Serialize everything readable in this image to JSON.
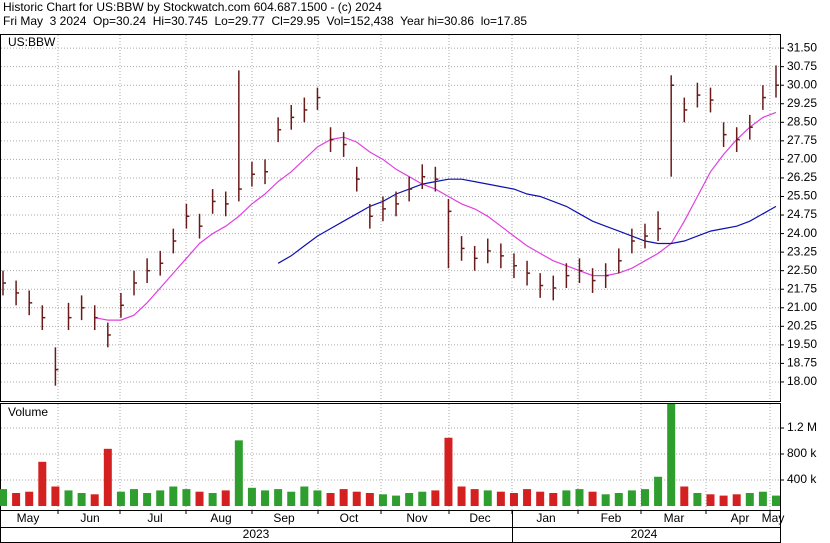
{
  "chart_data": {
    "type": "ohlc",
    "title": "Historic Chart for US:BBW by Stockwatch.com 604.687.1500 - (c) 2024",
    "subtitle": "Fri May  3 2024  Op=30.24  Hi=30.745  Lo=29.77  Cl=29.95  Vol=152,438  Year hi=30.86  lo=17.85",
    "symbol": "US:BBW",
    "volume_label": "Volume",
    "months": [
      "May",
      "Jun",
      "Jul",
      "Aug",
      "Sep",
      "Oct",
      "Nov",
      "Dec",
      "Jan",
      "Feb",
      "Mar",
      "Apr",
      "May"
    ],
    "years": [
      "2023",
      "2024"
    ],
    "bar_color": "#6b1a1a",
    "close": [
      22.0,
      21.6,
      21.2,
      20.6,
      18.5,
      20.6,
      21.0,
      20.6,
      19.9,
      21.1,
      22.0,
      22.5,
      22.8,
      23.7,
      24.7,
      24.3,
      25.3,
      25.2,
      25.8,
      26.4,
      26.5,
      28.2,
      28.7,
      29.0,
      29.5,
      27.8,
      27.6,
      26.2,
      24.7,
      25.0,
      25.2,
      25.8,
      26.3,
      26.2,
      24.9,
      23.4,
      23.0,
      23.3,
      23.1,
      22.7,
      22.4,
      21.9,
      21.8,
      22.3,
      22.5,
      22.1,
      22.3,
      22.9,
      23.7,
      23.9,
      24.2,
      30.0,
      29.0,
      29.6,
      29.4,
      28.0,
      27.8,
      28.3,
      29.5,
      30.0
    ],
    "high": [
      22.5,
      22.1,
      21.7,
      21.1,
      19.4,
      21.2,
      21.5,
      21.1,
      20.4,
      21.6,
      22.5,
      23.0,
      23.3,
      24.2,
      25.2,
      24.8,
      25.8,
      25.7,
      30.6,
      26.9,
      27.0,
      28.7,
      29.2,
      29.5,
      29.9,
      28.3,
      28.1,
      26.7,
      25.2,
      25.5,
      25.7,
      26.3,
      26.8,
      26.7,
      25.4,
      23.9,
      23.5,
      23.8,
      23.6,
      23.2,
      22.9,
      22.4,
      22.3,
      22.8,
      23.0,
      22.6,
      22.8,
      23.4,
      24.2,
      24.4,
      24.9,
      30.4,
      29.5,
      30.1,
      29.9,
      28.5,
      28.3,
      28.8,
      30.0,
      30.8
    ],
    "low": [
      21.5,
      21.1,
      20.7,
      20.1,
      17.85,
      20.1,
      20.5,
      20.1,
      19.4,
      20.6,
      21.5,
      22.0,
      22.3,
      23.2,
      24.2,
      23.8,
      24.8,
      24.7,
      25.3,
      25.9,
      26.0,
      27.7,
      28.2,
      28.5,
      29.0,
      27.3,
      27.1,
      25.7,
      24.2,
      24.5,
      24.7,
      25.3,
      25.8,
      25.7,
      22.6,
      22.9,
      22.5,
      22.8,
      22.6,
      22.2,
      21.9,
      21.4,
      21.3,
      21.8,
      22.0,
      21.6,
      21.8,
      22.4,
      23.2,
      23.4,
      23.7,
      26.3,
      28.5,
      29.1,
      28.9,
      27.5,
      27.3,
      27.8,
      29.0,
      29.5
    ],
    "ma_series": [
      {
        "color": "#e040e0",
        "values": [
          null,
          null,
          null,
          null,
          null,
          null,
          null,
          20.6,
          20.5,
          20.5,
          20.7,
          21.2,
          21.8,
          22.4,
          23.0,
          23.6,
          24.0,
          24.3,
          24.7,
          25.2,
          25.6,
          26.1,
          26.5,
          27.0,
          27.5,
          27.8,
          27.9,
          27.7,
          27.3,
          27.0,
          26.6,
          26.3,
          26.0,
          25.8,
          25.5,
          25.2,
          25.0,
          24.7,
          24.3,
          23.9,
          23.5,
          23.2,
          22.9,
          22.7,
          22.5,
          22.3,
          22.3,
          22.4,
          22.6,
          22.9,
          23.2,
          23.6,
          24.5,
          25.5,
          26.5,
          27.2,
          27.8,
          28.3,
          28.7,
          28.9
        ]
      },
      {
        "color": "#1010b0",
        "values": [
          null,
          null,
          null,
          null,
          null,
          null,
          null,
          null,
          null,
          null,
          null,
          null,
          null,
          null,
          null,
          null,
          null,
          null,
          null,
          null,
          null,
          22.8,
          23.1,
          23.5,
          23.9,
          24.2,
          24.5,
          24.8,
          25.1,
          25.3,
          25.6,
          25.8,
          26.0,
          26.1,
          26.2,
          26.2,
          26.1,
          26.0,
          25.9,
          25.8,
          25.6,
          25.5,
          25.3,
          25.1,
          24.8,
          24.5,
          24.3,
          24.1,
          23.9,
          23.7,
          23.6,
          23.6,
          23.7,
          23.9,
          24.1,
          24.2,
          24.3,
          24.5,
          24.8,
          25.1
        ]
      }
    ],
    "volume": [
      260000,
      200000,
      220000,
      680000,
      300000,
      240000,
      200000,
      180000,
      880000,
      220000,
      260000,
      200000,
      240000,
      300000,
      260000,
      220000,
      200000,
      240000,
      1010000,
      280000,
      240000,
      260000,
      220000,
      300000,
      240000,
      200000,
      260000,
      220000,
      200000,
      180000,
      160000,
      200000,
      220000,
      240000,
      1050000,
      300000,
      260000,
      240000,
      220000,
      200000,
      260000,
      220000,
      200000,
      240000,
      260000,
      220000,
      180000,
      200000,
      240000,
      260000,
      450000,
      1570000,
      300000,
      200000,
      180000,
      160000,
      180000,
      200000,
      220000,
      160000
    ],
    "up_color": "#2e9e2e",
    "down_color": "#d42020",
    "ylim": [
      17.23,
      32.03
    ],
    "yticks": [
      {
        "value": 18,
        "label": "18.00"
      },
      18.75,
      {
        "value": 19.5,
        "label": "19.50"
      },
      20.25,
      {
        "value": 21,
        "label": "21.00"
      },
      21.75,
      {
        "value": 22.5,
        "label": "22.50"
      },
      23.25,
      {
        "value": 24,
        "label": "24.00"
      },
      24.75,
      {
        "value": 25.5,
        "label": "25.50"
      },
      26.25,
      {
        "value": 27,
        "label": "27.00"
      },
      27.75,
      {
        "value": 28.5,
        "label": "28.50"
      },
      29.25,
      {
        "value": 30,
        "label": "30.00"
      },
      30.75,
      {
        "value": 31.5,
        "label": "31.50"
      }
    ],
    "vlim": [
      0,
      1585000
    ],
    "vticks": [
      {
        "value": 400000,
        "label": "400 k"
      },
      {
        "value": 800000,
        "label": "800 k"
      },
      {
        "value": 1200000,
        "label": "1.2 M"
      }
    ],
    "grid": true
  }
}
